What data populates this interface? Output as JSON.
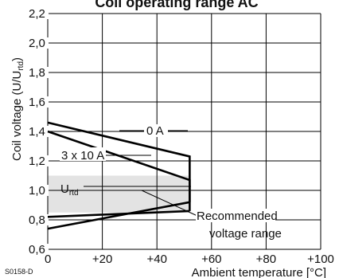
{
  "chart_data": {
    "type": "line",
    "title": "Coil operating range AC",
    "xlabel": "Ambient temperature [°C]",
    "ylabel_main": "Coil voltage (U/U",
    "ylabel_sub": "rtd",
    "ylabel_end": ")",
    "xlim": [
      0,
      100
    ],
    "ylim": [
      0.6,
      2.2
    ],
    "x_ticks": [
      0,
      20,
      40,
      60,
      80,
      100
    ],
    "x_tick_labels": [
      "0",
      "+20",
      "+40",
      "+60",
      "+80",
      "+100"
    ],
    "y_ticks": [
      0.6,
      0.8,
      1.0,
      1.2,
      1.4,
      1.6,
      1.8,
      2.0,
      2.2
    ],
    "y_tick_labels": [
      "0,6",
      "0,8",
      "1,0",
      "1,2",
      "1,4",
      "1,6",
      "1,8",
      "2,0",
      "2,2"
    ],
    "grid": true,
    "recommended_band": [
      0.85,
      1.1
    ],
    "series": [
      {
        "name": "0 A",
        "x": [
          0,
          52,
          52
        ],
        "y": [
          1.46,
          1.23,
          0.86
        ]
      },
      {
        "name": "3 x 10 A",
        "x": [
          0,
          52,
          52
        ],
        "y": [
          1.4,
          1.07,
          0.92
        ]
      },
      {
        "x": [
          0,
          52
        ],
        "y": [
          0.82,
          0.86
        ]
      },
      {
        "x": [
          0,
          52
        ],
        "y": [
          0.74,
          0.92
        ]
      }
    ],
    "annotations": {
      "label_0A": "0 A",
      "label_3x10A": "3 x 10 A",
      "label_urtd_main": "U",
      "label_urtd_sub": "rtd",
      "label_recommended_1": "Recommended",
      "label_recommended_2": "voltage range"
    },
    "figure_code": "S0158-D"
  }
}
